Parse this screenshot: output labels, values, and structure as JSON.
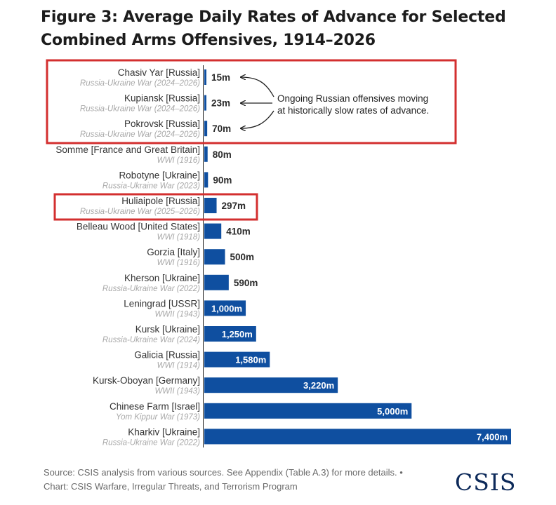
{
  "title": "Figure 3: Average Daily Rates of Advance for Selected Combined Arms Offensives, 1914–2026",
  "annotation": {
    "line1": "Ongoing Russian offensives moving",
    "line2": "at historically slow rates of advance."
  },
  "footer": {
    "source": "Source: CSIS analysis from various sources. See Appendix (Table A.3) for more details. •",
    "credit": "Chart: CSIS Warfare, Irregular Threats, and Terrorism Program"
  },
  "logo": "CSIS",
  "colors": {
    "bar": "#0f4fa0",
    "highlight_box": "#d32f2f",
    "axis": "#222222"
  },
  "chart_data": {
    "type": "bar",
    "orientation": "horizontal",
    "unit": "m",
    "categories": [
      {
        "name": "Chasiv Yar [Russia]",
        "sub": "Russia-Ukraine War (2024–2026)",
        "value": 15,
        "label": "15m",
        "highlighted": true
      },
      {
        "name": "Kupiansk [Russia]",
        "sub": "Russia-Ukraine War (2024–2026)",
        "value": 23,
        "label": "23m",
        "highlighted": true
      },
      {
        "name": "Pokrovsk [Russia]",
        "sub": "Russia-Ukraine War (2024–2026)",
        "value": 70,
        "label": "70m",
        "highlighted": true
      },
      {
        "name": "Somme [France and Great Britain]",
        "sub": "WWI (1916)",
        "value": 80,
        "label": "80m",
        "highlighted": false
      },
      {
        "name": "Robotyne [Ukraine]",
        "sub": "Russia-Ukraine War (2023)",
        "value": 90,
        "label": "90m",
        "highlighted": false
      },
      {
        "name": "Huliaipole [Russia]",
        "sub": "Russia-Ukraine War (2025–2026)",
        "value": 297,
        "label": "297m",
        "highlighted": true
      },
      {
        "name": "Belleau Wood [United States]",
        "sub": "WWI (1918)",
        "value": 410,
        "label": "410m",
        "highlighted": false
      },
      {
        "name": "Gorzia [Italy]",
        "sub": "WWI (1916)",
        "value": 500,
        "label": "500m",
        "highlighted": false
      },
      {
        "name": "Kherson [Ukraine]",
        "sub": "Russia-Ukraine War (2022)",
        "value": 590,
        "label": "590m",
        "highlighted": false
      },
      {
        "name": "Leningrad [USSR]",
        "sub": "WWII (1943)",
        "value": 1000,
        "label": "1,000m",
        "highlighted": false
      },
      {
        "name": "Kursk [Ukraine]",
        "sub": "Russia-Ukraine War (2024)",
        "value": 1250,
        "label": "1,250m",
        "highlighted": false
      },
      {
        "name": "Galicia [Russia]",
        "sub": "WWI (1914)",
        "value": 1580,
        "label": "1,580m",
        "highlighted": false
      },
      {
        "name": "Kursk-Oboyan [Germany]",
        "sub": "WWII (1943)",
        "value": 3220,
        "label": "3,220m",
        "highlighted": false
      },
      {
        "name": "Chinese Farm [Israel]",
        "sub": "Yom Kippur War (1973)",
        "value": 5000,
        "label": "5,000m",
        "highlighted": false
      },
      {
        "name": "Kharkiv [Ukraine]",
        "sub": "Russia-Ukraine War (2022)",
        "value": 7400,
        "label": "7,400m",
        "highlighted": false
      }
    ],
    "xlim": [
      0,
      7400
    ],
    "grid": false,
    "legend": "none"
  }
}
